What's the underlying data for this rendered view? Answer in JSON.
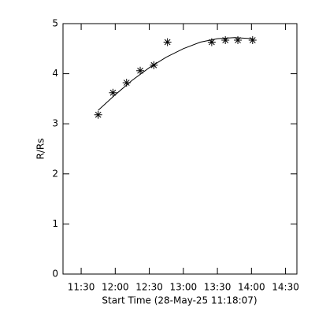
{
  "chart_data": {
    "type": "scatter",
    "y_label": "R/Rs",
    "x_label": "Start Time (28-May-25 11:18:07)",
    "xlim": [
      674,
      880
    ],
    "ylim": [
      0,
      5
    ],
    "xticks": [
      {
        "value": 690,
        "label": "11:30"
      },
      {
        "value": 720,
        "label": "12:00"
      },
      {
        "value": 750,
        "label": "12:30"
      },
      {
        "value": 780,
        "label": "13:00"
      },
      {
        "value": 810,
        "label": "13:30"
      },
      {
        "value": 840,
        "label": "14:00"
      },
      {
        "value": 870,
        "label": "14:30"
      }
    ],
    "yticks": [
      0,
      1,
      2,
      3,
      4,
      5
    ],
    "color": "#000000",
    "points": {
      "x": [
        705,
        718,
        730,
        742,
        754,
        766,
        805,
        817,
        828,
        841
      ],
      "values": [
        3.18,
        3.62,
        3.82,
        4.06,
        4.17,
        4.63,
        4.63,
        4.67,
        4.67,
        4.67
      ]
    },
    "fit": {
      "x": [
        705,
        720,
        735,
        750,
        765,
        780,
        795,
        810,
        825,
        841
      ],
      "values": [
        3.27,
        3.58,
        3.87,
        4.12,
        4.33,
        4.5,
        4.63,
        4.7,
        4.72,
        4.7
      ]
    }
  }
}
